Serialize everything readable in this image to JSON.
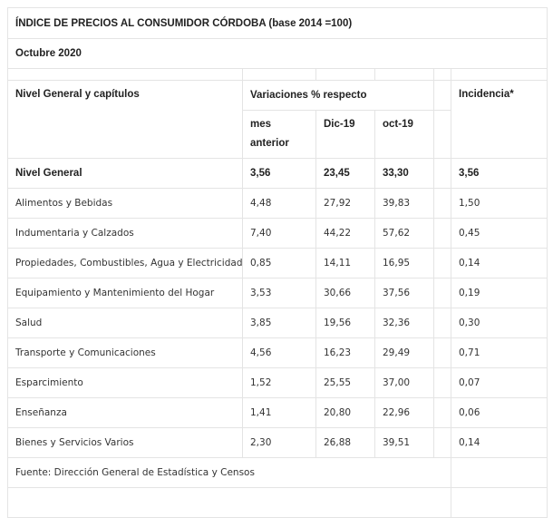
{
  "title": "ÍNDICE DE PRECIOS AL CONSUMIDOR CÓRDOBA (base 2014 =100)",
  "period": "Octubre 2020",
  "headers": {
    "chapters": "Nivel General y capítulos",
    "variations": "Variaciones % respecto",
    "month_prev": "mes anterior",
    "dec19": "Dic-19",
    "oct19": "oct-19",
    "incidence": "Incidencia*"
  },
  "rows": [
    {
      "name": "Nivel General",
      "mes": "3,56",
      "dic": "23,45",
      "oct": "33,30",
      "inc": "3,56"
    },
    {
      "name": "Alimentos y Bebidas",
      "mes": "4,48",
      "dic": "27,92",
      "oct": "39,83",
      "inc": "1,50"
    },
    {
      "name": "Indumentaria y Calzados",
      "mes": "7,40",
      "dic": "44,22",
      "oct": "57,62",
      "inc": "0,45"
    },
    {
      "name": "Propiedades, Combustibles, Agua y Electricidad",
      "mes": "0,85",
      "dic": "14,11",
      "oct": "16,95",
      "inc": "0,14"
    },
    {
      "name": "Equipamiento y Mantenimiento del Hogar",
      "mes": "3,53",
      "dic": "30,66",
      "oct": "37,56",
      "inc": "0,19"
    },
    {
      "name": "Salud",
      "mes": "3,85",
      "dic": "19,56",
      "oct": "32,36",
      "inc": "0,30"
    },
    {
      "name": "Transporte y Comunicaciones",
      "mes": "4,56",
      "dic": "16,23",
      "oct": "29,49",
      "inc": "0,71"
    },
    {
      "name": "Esparcimiento",
      "mes": "1,52",
      "dic": "25,55",
      "oct": "37,00",
      "inc": "0,07"
    },
    {
      "name": "Enseñanza",
      "mes": "1,41",
      "dic": "20,80",
      "oct": "22,96",
      "inc": "0,06"
    },
    {
      "name": "Bienes y Servicios Varios",
      "mes": "2,30",
      "dic": "26,88",
      "oct": "39,51",
      "inc": "0,14"
    }
  ],
  "source": "Fuente: Dirección General de Estadística y Censos"
}
